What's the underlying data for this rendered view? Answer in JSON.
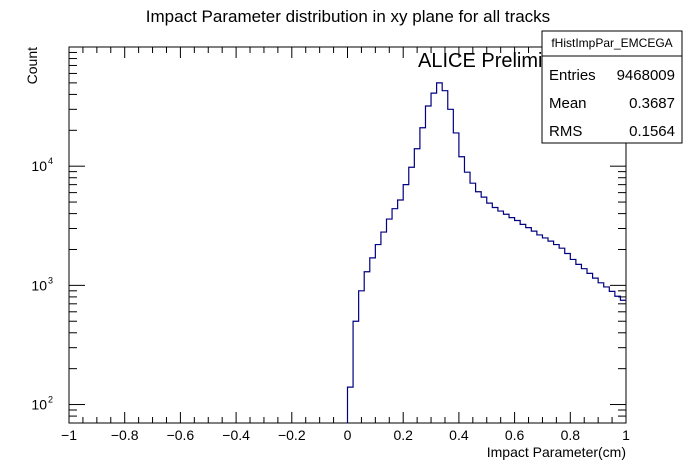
{
  "chart_data": {
    "type": "histogram-step",
    "title": "Impact Parameter distribution in xy plane for all tracks",
    "xlabel": "Impact Parameter(cm)",
    "ylabel": "Count",
    "annotation": "ALICE Preliminary",
    "xlim": [
      -1,
      1
    ],
    "ylim": [
      70,
      100000
    ],
    "yscale": "log",
    "grid": false,
    "legend": "none",
    "x_ticks": [
      {
        "v": -1,
        "label": "−1"
      },
      {
        "v": -0.8,
        "label": "−0.8"
      },
      {
        "v": -0.6,
        "label": "−0.6"
      },
      {
        "v": -0.4,
        "label": "−0.4"
      },
      {
        "v": -0.2,
        "label": "−0.2"
      },
      {
        "v": 0,
        "label": "0"
      },
      {
        "v": 0.2,
        "label": "0.2"
      },
      {
        "v": 0.4,
        "label": "0.4"
      },
      {
        "v": 0.6,
        "label": "0.6"
      },
      {
        "v": 0.8,
        "label": "0.8"
      },
      {
        "v": 1,
        "label": "1"
      }
    ],
    "y_ticks": [
      {
        "v": 100,
        "base": "10",
        "exp": "2"
      },
      {
        "v": 1000,
        "base": "10",
        "exp": "3"
      },
      {
        "v": 10000,
        "base": "10",
        "exp": "4"
      }
    ],
    "series": [
      {
        "color": "#000080",
        "bin_edges": [
          0,
          0.02,
          0.04,
          0.06,
          0.08,
          0.1,
          0.12,
          0.14,
          0.16,
          0.18,
          0.2,
          0.22,
          0.24,
          0.26,
          0.28,
          0.3,
          0.32,
          0.34,
          0.36,
          0.38,
          0.4,
          0.42,
          0.44,
          0.46,
          0.48,
          0.5,
          0.52,
          0.54,
          0.56,
          0.58,
          0.6,
          0.62,
          0.64,
          0.66,
          0.68,
          0.7,
          0.72,
          0.74,
          0.76,
          0.78,
          0.8,
          0.82,
          0.84,
          0.86,
          0.88,
          0.9,
          0.92,
          0.94,
          0.96,
          0.98,
          1.0
        ],
        "counts": [
          140,
          500,
          900,
          1300,
          1700,
          2200,
          2800,
          3600,
          4400,
          5200,
          7000,
          9800,
          14000,
          21000,
          32000,
          41000,
          50000,
          43000,
          30000,
          19000,
          12000,
          8900,
          7200,
          6100,
          5500,
          4900,
          4500,
          4200,
          3950,
          3700,
          3500,
          3250,
          3050,
          2850,
          2650,
          2500,
          2350,
          2200,
          2050,
          1850,
          1650,
          1500,
          1380,
          1260,
          1150,
          1050,
          970,
          890,
          810,
          750
        ],
        "baseline": 70
      }
    ]
  },
  "stats_box": {
    "name": "fHistImpPar_EMCEGA",
    "rows": [
      {
        "label": "Entries",
        "value": "9468009"
      },
      {
        "label": "Mean",
        "value": "0.3687"
      },
      {
        "label": "RMS",
        "value": "0.1564"
      }
    ]
  }
}
